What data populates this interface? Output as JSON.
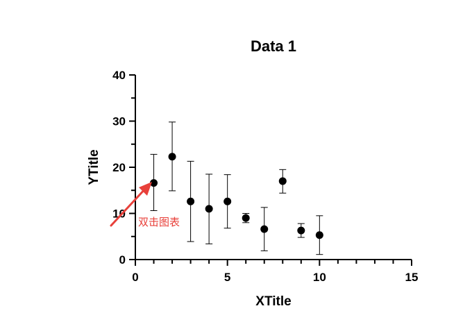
{
  "chart_data": {
    "type": "scatter",
    "title": "Data 1",
    "xlabel": "XTitle",
    "ylabel": "YTitle",
    "xlim": [
      0,
      15
    ],
    "ylim": [
      0,
      40
    ],
    "xticks": [
      "0",
      "5",
      "10",
      "15"
    ],
    "yticks": [
      "0",
      "10",
      "20",
      "30",
      "40"
    ],
    "grid": false,
    "series": [
      {
        "x": [
          1,
          2,
          3,
          4,
          5,
          6,
          7,
          8,
          9,
          10
        ],
        "y": [
          16.6,
          22.3,
          12.6,
          11.0,
          12.6,
          9.0,
          6.6,
          17.0,
          6.3,
          5.3
        ],
        "err_low": [
          10.6,
          14.9,
          3.9,
          3.4,
          6.8,
          8.0,
          1.9,
          14.4,
          4.8,
          1.1
        ],
        "err_high": [
          22.8,
          29.8,
          21.3,
          18.5,
          18.4,
          10.0,
          11.3,
          19.5,
          7.8,
          9.5
        ],
        "marker": "filled-circle",
        "color": "#000000"
      }
    ],
    "annotation": {
      "text": "双击图表",
      "color": "#e8403a",
      "points_to_x": 1,
      "points_to_y": 16.6
    }
  }
}
